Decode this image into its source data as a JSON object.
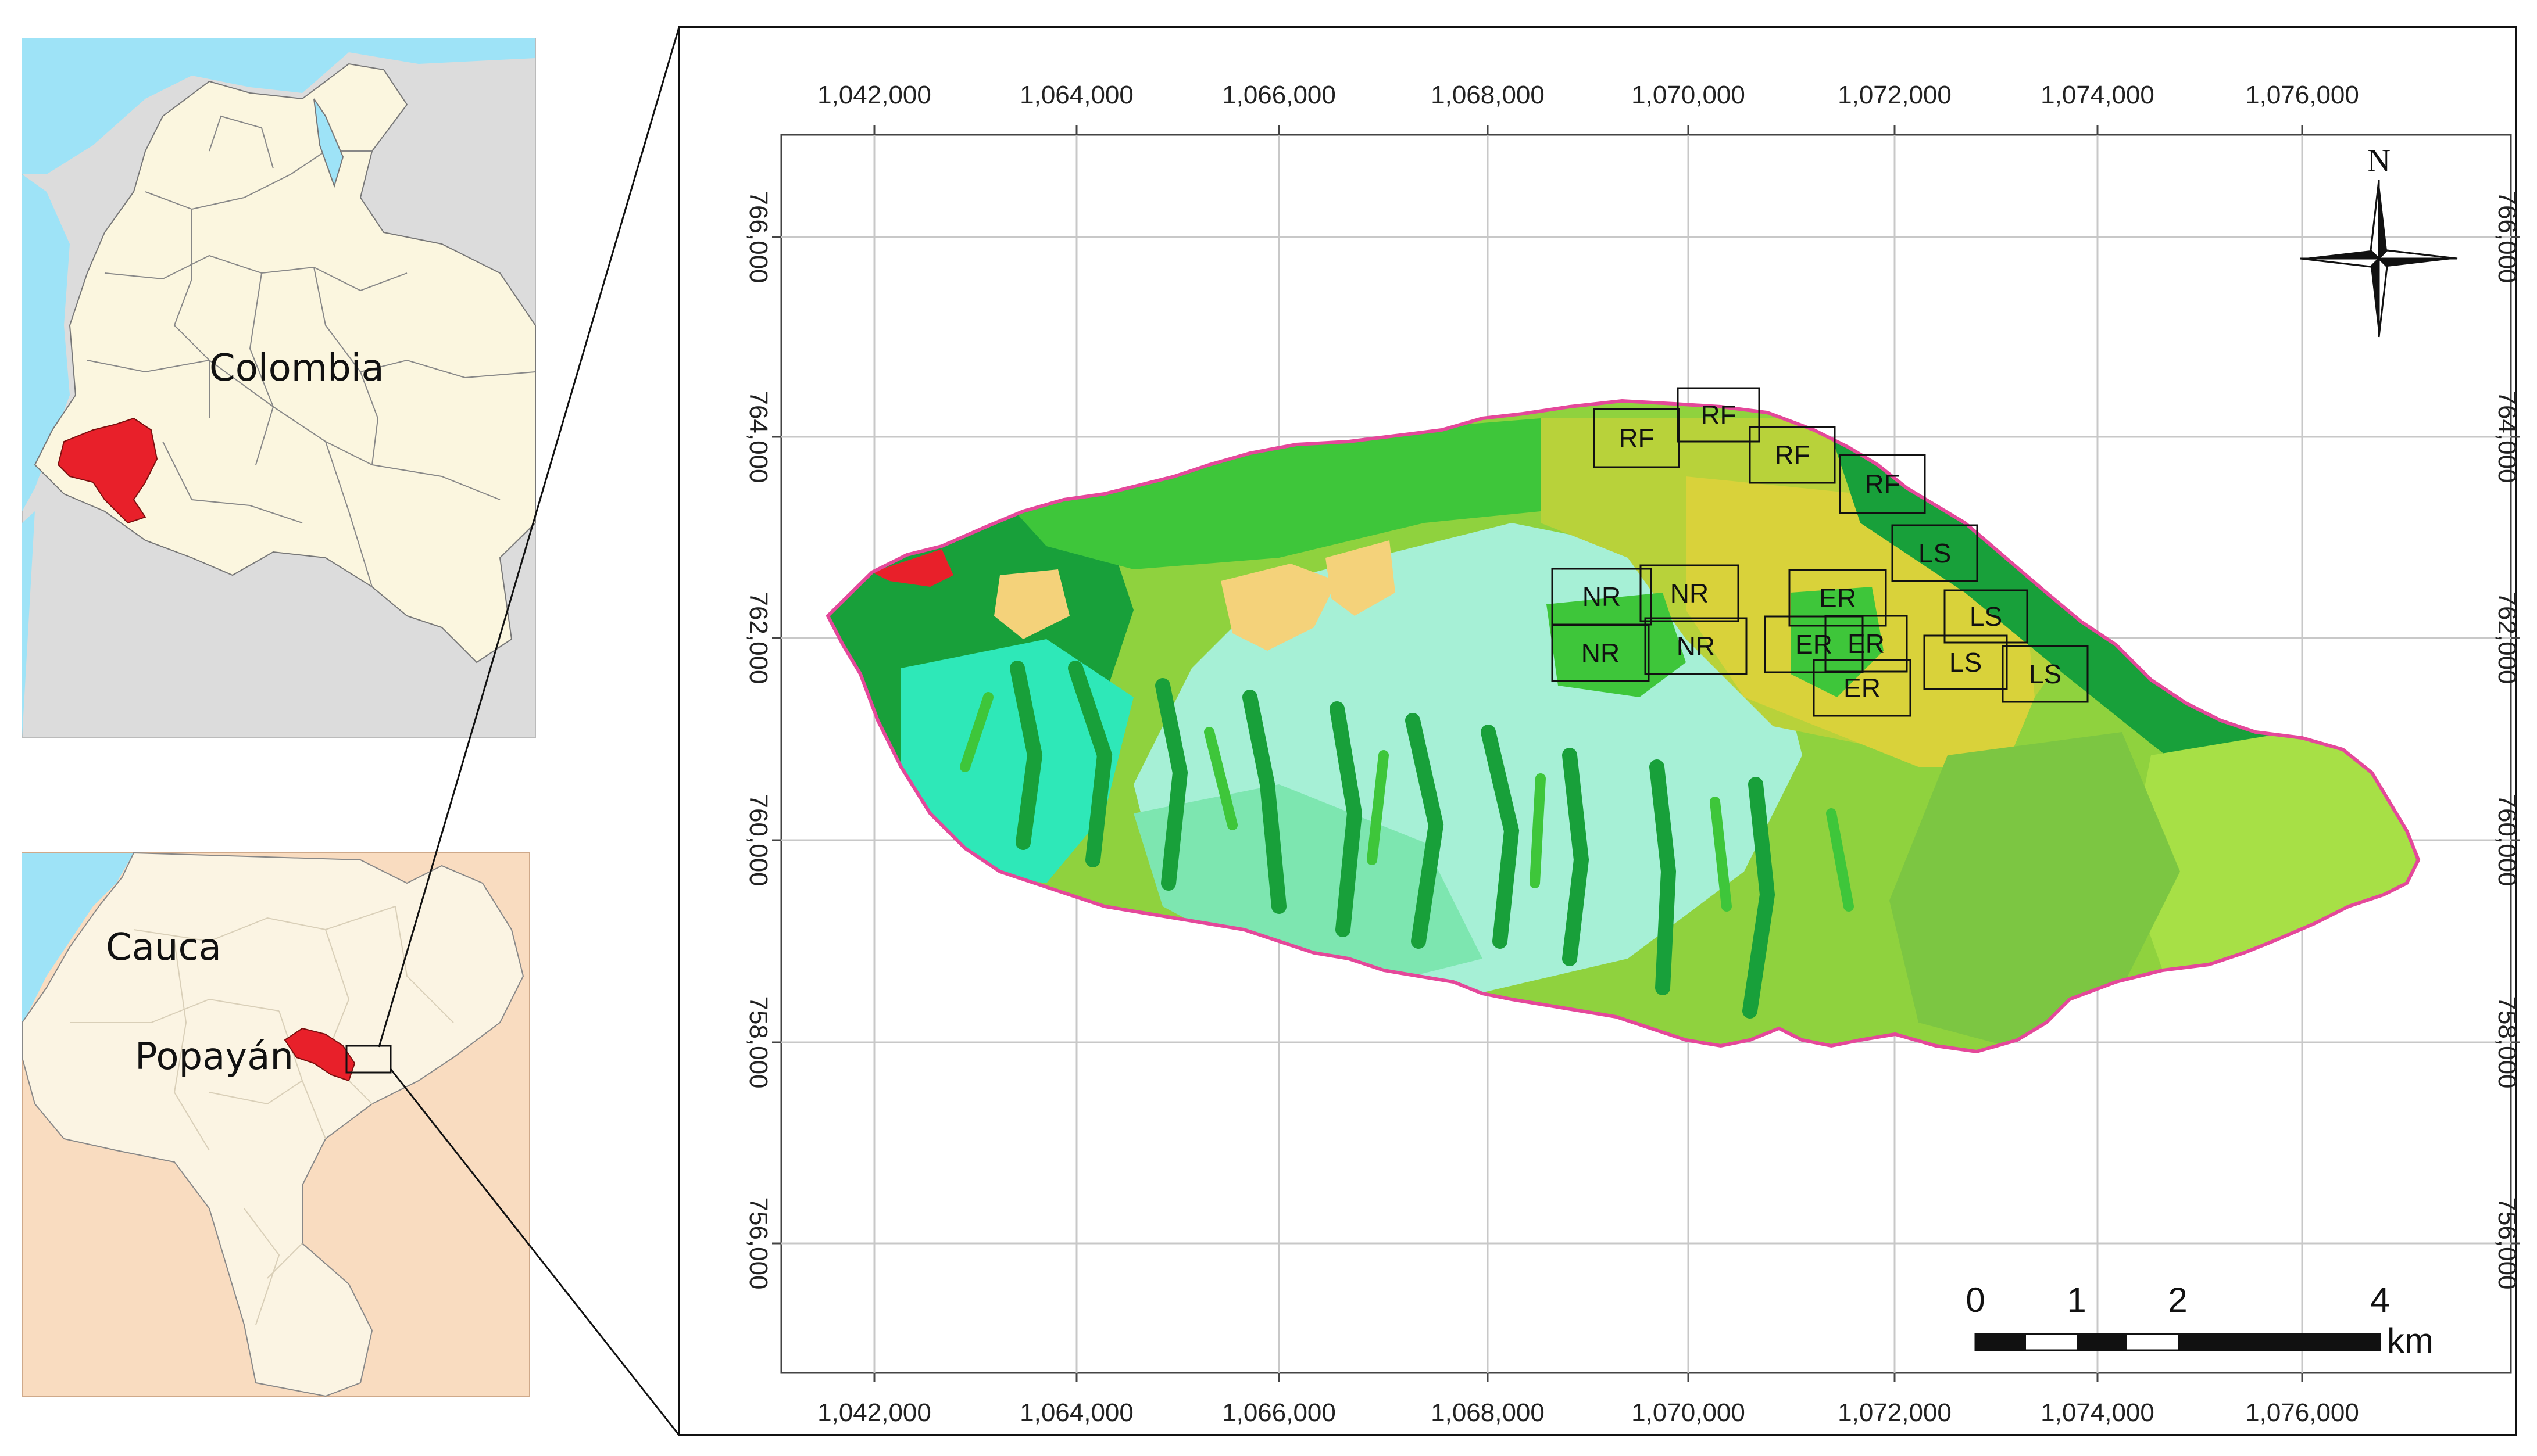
{
  "insets": {
    "colombia_label": "Colombia",
    "cauca_label": "Cauca",
    "popayan_label": "Popayán"
  },
  "map": {
    "x_ticks": [
      "1,042,000",
      "1,064,000",
      "1,066,000",
      "1,068,000",
      "1,070,000",
      "1,072,000",
      "1,074,000",
      "1,076,000"
    ],
    "y_ticks": [
      "766,000",
      "764,000",
      "762,000",
      "760,000",
      "758,000",
      "756,000"
    ],
    "north_label": "N",
    "scale_labels": [
      "0",
      "1",
      "2",
      "4"
    ],
    "scale_unit": "km",
    "sites": [
      {
        "code": "RF"
      },
      {
        "code": "RF"
      },
      {
        "code": "RF"
      },
      {
        "code": "RF"
      },
      {
        "code": "LS"
      },
      {
        "code": "LS"
      },
      {
        "code": "LS"
      },
      {
        "code": "LS"
      },
      {
        "code": "NR"
      },
      {
        "code": "NR"
      },
      {
        "code": "NR"
      },
      {
        "code": "NR"
      },
      {
        "code": "ER"
      },
      {
        "code": "ER"
      },
      {
        "code": "ER"
      },
      {
        "code": "ER"
      }
    ]
  },
  "colors": {
    "highlight_red": "#e8202a",
    "water": "#9ee3f7",
    "colombia_land": "#fbf6df",
    "neighbor_land": "#dcdcdc",
    "cauca_bg": "#f9dcc0",
    "cauca_land": "#fbf4e3",
    "boundary": "#e4489a",
    "dark_green": "#18a03a",
    "green": "#3ec63a",
    "light_green": "#8fd23e",
    "olive": "#b8d23a",
    "yellow": "#d9d23a",
    "tan": "#f4d27a",
    "cyan": "#2ee8b8",
    "light_cyan": "#a6f0d6",
    "mint": "#7de6b0"
  }
}
